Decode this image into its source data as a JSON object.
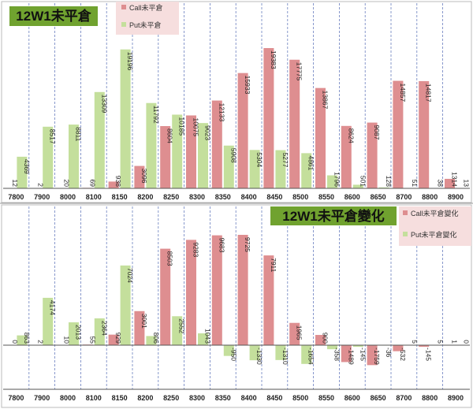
{
  "colors": {
    "call": "#de8e90",
    "put": "#c4df9c",
    "title_bg": "#70a22f",
    "legend_bg": "#f6dede"
  },
  "chart_data": [
    {
      "type": "bar",
      "title": "12W1未平倉",
      "categories": [
        "7800",
        "7900",
        "8000",
        "8100",
        "8150",
        "8200",
        "8250",
        "8300",
        "8350",
        "8400",
        "8450",
        "8500",
        "8550",
        "8600",
        "8650",
        "8700",
        "8800",
        "8900"
      ],
      "series": [
        {
          "name": "Call未平倉",
          "values": [
            12,
            2,
            20,
            69,
            938,
            3096,
            8604,
            10075,
            12133,
            15933,
            19383,
            17775,
            13867,
            8624,
            9087,
            14857,
            14817,
            1314
          ]
        },
        {
          "name": "Put未平倉",
          "values": [
            4369,
            8517,
            8811,
            13309,
            19196,
            11792,
            10185,
            9023,
            5908,
            5304,
            5277,
            4861,
            1796,
            501,
            128,
            51,
            38,
            13
          ]
        }
      ],
      "legend_position": "top-left",
      "grid": "vertical-dashed"
    },
    {
      "type": "bar",
      "title": "12W1未平倉變化",
      "categories": [
        "7800",
        "7900",
        "8000",
        "8100",
        "8150",
        "8200",
        "8250",
        "8300",
        "8350",
        "8400",
        "8450",
        "8500",
        "8550",
        "8600",
        "8650",
        "8700",
        "8800",
        "8900"
      ],
      "series": [
        {
          "name": "Call未平倉變化",
          "values": [
            0,
            2,
            10,
            55,
            929,
            3001,
            8503,
            9283,
            9683,
            9725,
            7911,
            1965,
            900,
            -1489,
            -1759,
            -532,
            -145,
            1
          ]
        },
        {
          "name": "Put未平倉變化",
          "values": [
            863,
            4174,
            2013,
            2364,
            7024,
            806,
            2552,
            1043,
            -950,
            -1330,
            -1310,
            -1654,
            -358,
            -145,
            -36,
            5,
            5,
            0
          ]
        }
      ],
      "legend_position": "right",
      "grid": "vertical-dashed"
    }
  ]
}
